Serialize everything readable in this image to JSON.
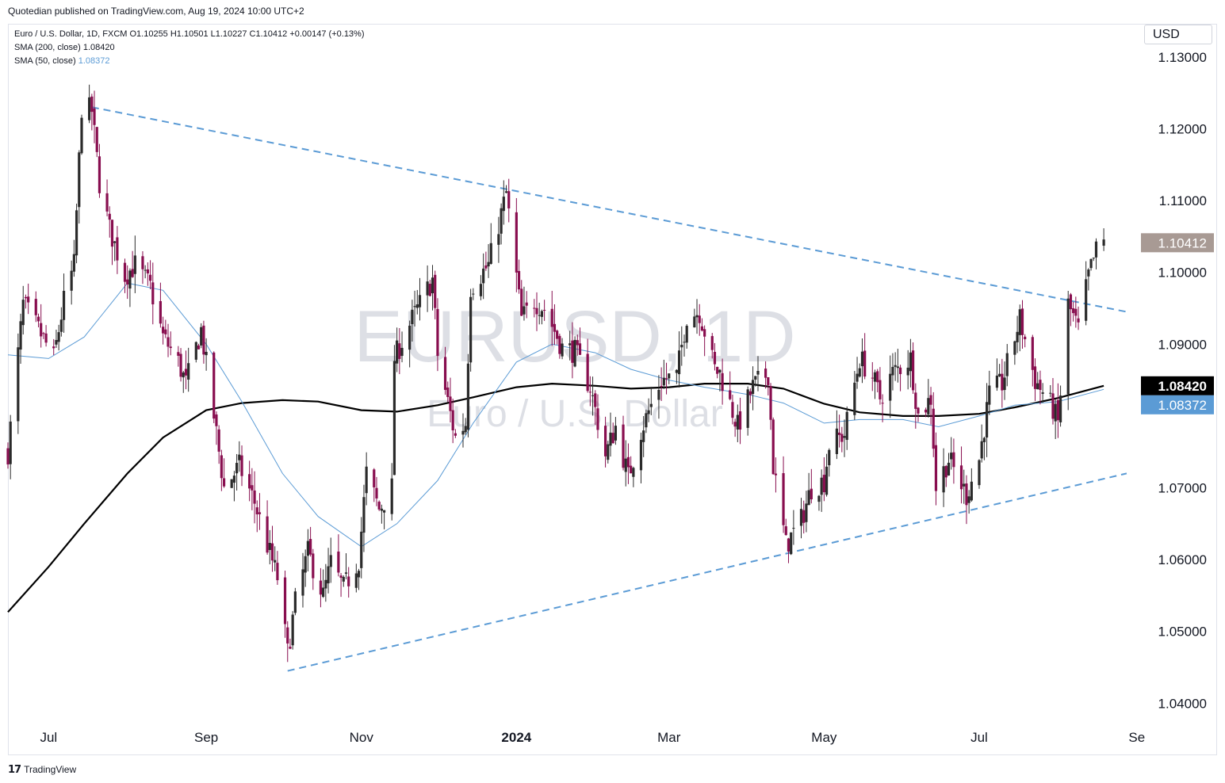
{
  "header": {
    "published": "Quotedian published on TradingView.com, Aug 19, 2024 10:00 UTC+2"
  },
  "legend": {
    "symbol_line": "Euro / U.S. Dollar, 1D, FXCM  O1.10255  H1.10501  L1.10227  C1.10412  +0.00147 (+0.13%)",
    "sma200_label": "SMA (200, close)",
    "sma200_value": "1.08420",
    "sma50_label": "SMA (50, close)",
    "sma50_value": "1.08372"
  },
  "currency_button": "USD",
  "watermark": {
    "main": "EURUSD, 1D",
    "sub": "Euro / U.S. Dollar"
  },
  "footer": {
    "brand": "TradingView"
  },
  "colors": {
    "candle_up": "#2b2b2b",
    "candle_down": "#880e4f",
    "sma200": "#000000",
    "sma50": "#5b9bd5",
    "trendline": "#5b9bd5",
    "last_price_bg": "#a89a94",
    "sma200_tag_bg": "#000000",
    "sma50_tag_bg": "#5b9bd5"
  },
  "chart_data": {
    "type": "candlestick",
    "title": "EURUSD, 1D",
    "y_ticks": [
      "1.13000",
      "1.12000",
      "1.11000",
      "1.10000",
      "1.09000",
      "1.07000",
      "1.06000",
      "1.05000",
      "1.04000"
    ],
    "x_ticks": [
      {
        "label": "Jul",
        "date": "2023-07-01"
      },
      {
        "label": "Sep",
        "date": "2023-09-01"
      },
      {
        "label": "Nov",
        "date": "2023-11-01"
      },
      {
        "label": "2024",
        "date": "2024-01-01"
      },
      {
        "label": "Mar",
        "date": "2024-03-01"
      },
      {
        "label": "May",
        "date": "2024-05-01"
      },
      {
        "label": "Jul",
        "date": "2024-07-01"
      },
      {
        "label": "Se",
        "date": "2024-09-01"
      }
    ],
    "ylim": [
      1.0375,
      1.1345
    ],
    "xlim": [
      "2023-06-15",
      "2024-09-02"
    ],
    "price_tags": [
      {
        "label": "1.10412",
        "value": 1.10412,
        "kind": "last"
      },
      {
        "label": "1.08420",
        "value": 1.0842,
        "kind": "sma200"
      },
      {
        "label": "1.08372",
        "value": 1.08372,
        "kind": "sma50"
      }
    ],
    "anchors": [
      [
        "2023-06-15",
        1.075
      ],
      [
        "2023-06-21",
        1.0955
      ],
      [
        "2023-06-27",
        1.092
      ],
      [
        "2023-07-03",
        1.088
      ],
      [
        "2023-07-07",
        1.096
      ],
      [
        "2023-07-11",
        1.101
      ],
      [
        "2023-07-14",
        1.123
      ],
      [
        "2023-07-18",
        1.1225
      ],
      [
        "2023-07-21",
        1.1125
      ],
      [
        "2023-07-25",
        1.106
      ],
      [
        "2023-07-31",
        1.0995
      ],
      [
        "2023-08-04",
        1.101
      ],
      [
        "2023-08-10",
        1.098
      ],
      [
        "2023-08-15",
        1.091
      ],
      [
        "2023-08-21",
        1.0875
      ],
      [
        "2023-08-24",
        1.0845
      ],
      [
        "2023-08-30",
        1.092
      ],
      [
        "2023-09-04",
        1.08
      ],
      [
        "2023-09-08",
        1.07
      ],
      [
        "2023-09-14",
        1.073
      ],
      [
        "2023-09-20",
        1.068
      ],
      [
        "2023-09-25",
        1.062
      ],
      [
        "2023-09-29",
        1.0575
      ],
      [
        "2023-10-03",
        1.047
      ],
      [
        "2023-10-06",
        1.054
      ],
      [
        "2023-10-11",
        1.061
      ],
      [
        "2023-10-17",
        1.055
      ],
      [
        "2023-10-20",
        1.0595
      ],
      [
        "2023-10-25",
        1.056
      ],
      [
        "2023-10-31",
        1.06
      ],
      [
        "2023-11-03",
        1.072
      ],
      [
        "2023-11-08",
        1.067
      ],
      [
        "2023-11-13",
        1.07
      ],
      [
        "2023-11-14",
        1.088
      ],
      [
        "2023-11-21",
        1.0935
      ],
      [
        "2023-11-29",
        1.099
      ],
      [
        "2023-12-01",
        1.0885
      ],
      [
        "2023-12-08",
        1.077
      ],
      [
        "2023-12-12",
        1.079
      ],
      [
        "2023-12-14",
        1.098
      ],
      [
        "2023-12-21",
        1.101
      ],
      [
        "2023-12-28",
        1.111
      ],
      [
        "2024-01-03",
        1.0935
      ],
      [
        "2024-01-08",
        1.096
      ],
      [
        "2024-01-12",
        1.095
      ],
      [
        "2024-01-19",
        1.0895
      ],
      [
        "2024-01-24",
        1.089
      ],
      [
        "2024-01-30",
        1.084
      ],
      [
        "2024-02-05",
        1.0745
      ],
      [
        "2024-02-09",
        1.0785
      ],
      [
        "2024-02-14",
        1.0715
      ],
      [
        "2024-02-19",
        1.078
      ],
      [
        "2024-02-27",
        1.085
      ],
      [
        "2024-03-04",
        1.0855
      ],
      [
        "2024-03-08",
        1.094
      ],
      [
        "2024-03-13",
        1.0945
      ],
      [
        "2024-03-19",
        1.0865
      ],
      [
        "2024-03-21",
        1.086
      ],
      [
        "2024-03-28",
        1.0785
      ],
      [
        "2024-04-03",
        1.084
      ],
      [
        "2024-04-09",
        1.086
      ],
      [
        "2024-04-11",
        1.073
      ],
      [
        "2024-04-16",
        1.062
      ],
      [
        "2024-04-22",
        1.0655
      ],
      [
        "2024-04-26",
        1.07
      ],
      [
        "2024-05-01",
        1.071
      ],
      [
        "2024-05-03",
        1.076
      ],
      [
        "2024-05-09",
        1.0775
      ],
      [
        "2024-05-15",
        1.088
      ],
      [
        "2024-05-20",
        1.0855
      ],
      [
        "2024-05-23",
        1.0825
      ],
      [
        "2024-05-28",
        1.086
      ],
      [
        "2024-06-04",
        1.088
      ],
      [
        "2024-06-07",
        1.08
      ],
      [
        "2024-06-12",
        1.0825
      ],
      [
        "2024-06-14",
        1.07
      ],
      [
        "2024-06-19",
        1.074
      ],
      [
        "2024-06-26",
        1.069
      ],
      [
        "2024-07-01",
        1.074
      ],
      [
        "2024-07-05",
        1.083
      ],
      [
        "2024-07-10",
        1.0845
      ],
      [
        "2024-07-17",
        1.0935
      ],
      [
        "2024-07-23",
        1.085
      ],
      [
        "2024-07-30",
        1.081
      ],
      [
        "2024-08-01",
        1.079
      ],
      [
        "2024-08-05",
        1.0955
      ],
      [
        "2024-08-09",
        1.092
      ],
      [
        "2024-08-13",
        1.0995
      ],
      [
        "2024-08-16",
        1.103
      ],
      [
        "2024-08-19",
        1.1041
      ]
    ],
    "sma200": [
      [
        "2023-06-15",
        1.0527
      ],
      [
        "2023-07-01",
        1.059
      ],
      [
        "2023-07-15",
        1.065
      ],
      [
        "2023-08-01",
        1.072
      ],
      [
        "2023-08-15",
        1.077
      ],
      [
        "2023-09-01",
        1.0808
      ],
      [
        "2023-09-15",
        1.0818
      ],
      [
        "2023-10-01",
        1.0822
      ],
      [
        "2023-10-15",
        1.082
      ],
      [
        "2023-11-01",
        1.0808
      ],
      [
        "2023-11-15",
        1.0806
      ],
      [
        "2023-12-01",
        1.0815
      ],
      [
        "2023-12-15",
        1.0826
      ],
      [
        "2024-01-01",
        1.084
      ],
      [
        "2024-01-15",
        1.0845
      ],
      [
        "2024-02-01",
        1.0842
      ],
      [
        "2024-02-15",
        1.0838
      ],
      [
        "2024-03-01",
        1.084
      ],
      [
        "2024-03-15",
        1.0845
      ],
      [
        "2024-04-01",
        1.0845
      ],
      [
        "2024-04-15",
        1.0838
      ],
      [
        "2024-05-01",
        1.0817
      ],
      [
        "2024-05-15",
        1.0805
      ],
      [
        "2024-06-01",
        1.08
      ],
      [
        "2024-06-15",
        1.08
      ],
      [
        "2024-07-01",
        1.0803
      ],
      [
        "2024-07-15",
        1.0812
      ],
      [
        "2024-08-01",
        1.0825
      ],
      [
        "2024-08-19",
        1.0842
      ]
    ],
    "sma50": [
      [
        "2023-06-15",
        1.0885
      ],
      [
        "2023-07-01",
        1.088
      ],
      [
        "2023-07-15",
        1.091
      ],
      [
        "2023-08-01",
        1.0985
      ],
      [
        "2023-08-15",
        1.0975
      ],
      [
        "2023-09-01",
        1.09
      ],
      [
        "2023-09-15",
        1.082
      ],
      [
        "2023-10-01",
        1.072
      ],
      [
        "2023-10-15",
        1.066
      ],
      [
        "2023-11-01",
        1.0618
      ],
      [
        "2023-11-15",
        1.065
      ],
      [
        "2023-12-01",
        1.071
      ],
      [
        "2023-12-15",
        1.079
      ],
      [
        "2024-01-01",
        1.0875
      ],
      [
        "2024-01-15",
        1.09
      ],
      [
        "2024-02-01",
        1.0888
      ],
      [
        "2024-02-15",
        1.0865
      ],
      [
        "2024-03-01",
        1.085
      ],
      [
        "2024-03-15",
        1.084
      ],
      [
        "2024-04-01",
        1.083
      ],
      [
        "2024-04-15",
        1.0818
      ],
      [
        "2024-05-01",
        1.079
      ],
      [
        "2024-05-15",
        1.0795
      ],
      [
        "2024-06-01",
        1.0795
      ],
      [
        "2024-06-15",
        1.0785
      ],
      [
        "2024-07-01",
        1.08
      ],
      [
        "2024-07-15",
        1.0815
      ],
      [
        "2024-08-01",
        1.082
      ],
      [
        "2024-08-19",
        1.0837
      ]
    ],
    "trendlines": [
      {
        "name": "resistance",
        "from": [
          "2023-07-18",
          1.123
        ],
        "to": [
          "2024-08-28",
          1.0945
        ]
      },
      {
        "name": "support",
        "from": [
          "2023-10-03",
          1.0445
        ],
        "to": [
          "2024-08-28",
          1.072
        ]
      }
    ]
  }
}
